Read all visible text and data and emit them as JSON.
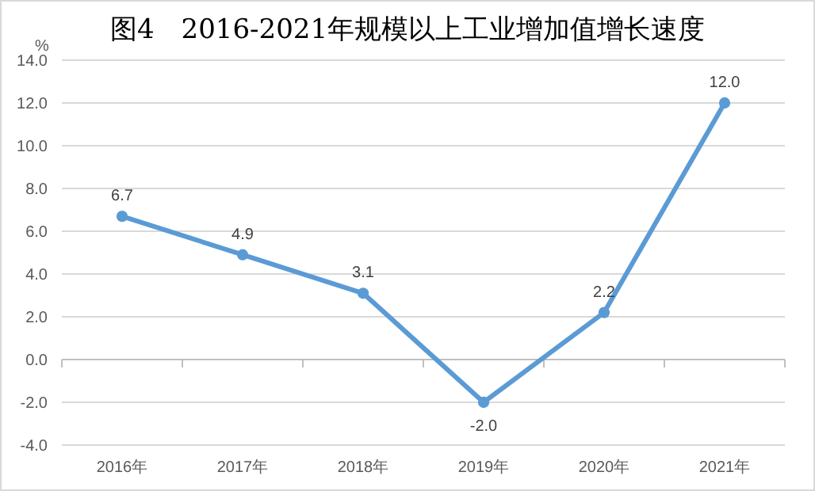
{
  "chart_data": {
    "type": "line",
    "title": "图4　2016-2021年规模以上工业增加值增长速度",
    "ylabel": "%",
    "categories": [
      "2016年",
      "2017年",
      "2018年",
      "2019年",
      "2020年",
      "2021年"
    ],
    "series": [
      {
        "color": "#5b9bd5",
        "values": [
          6.7,
          4.9,
          3.1,
          -2.0,
          2.2,
          12.0
        ]
      }
    ],
    "value_labels": [
      "6.7",
      "4.9",
      "3.1",
      "-2.0",
      "2.2",
      "12.0"
    ],
    "ylim": [
      -4,
      14
    ],
    "yticks": [
      {
        "value": -4,
        "label": "-4.0"
      },
      {
        "value": -2,
        "label": "-2.0"
      },
      {
        "value": 0,
        "label": "0.0"
      },
      {
        "value": 2,
        "label": "2.0"
      },
      {
        "value": 4,
        "label": "4.0"
      },
      {
        "value": 6,
        "label": "6.0"
      },
      {
        "value": 8,
        "label": "8.0"
      },
      {
        "value": 10,
        "label": "10.0"
      },
      {
        "value": 12,
        "label": "12.0"
      },
      {
        "value": 14,
        "label": "14.0"
      }
    ],
    "grid": "y",
    "marker": "circle",
    "line_style": "solid"
  }
}
